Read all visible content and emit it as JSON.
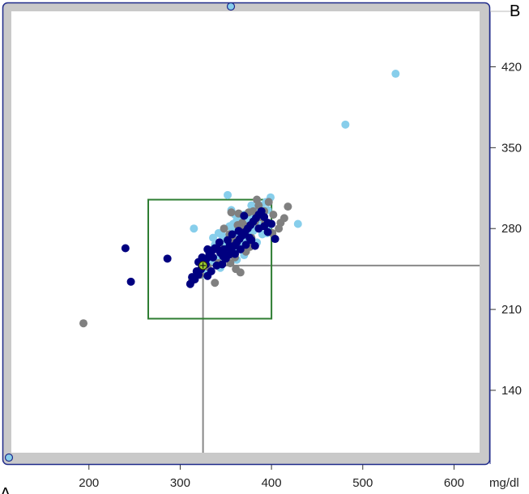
{
  "chart_data": {
    "type": "scatter",
    "x_unit_label": "mg/dl",
    "x_axis_title": "A",
    "y_axis_title": "B",
    "x_ticks": [
      200,
      300,
      400,
      500,
      600
    ],
    "y_ticks": [
      140,
      210,
      280,
      350,
      420
    ],
    "xlim": [
      115,
      628
    ],
    "ylim": [
      86,
      468
    ],
    "grid": false,
    "colors": {
      "frame": "#c9c9c9",
      "frame_border": "#1f2a8a",
      "handle": "#87ceeb",
      "box": "#2e7d32",
      "crosshair": "#888888",
      "marker": "#9acd32"
    },
    "marker": {
      "x": 325,
      "y": 248
    },
    "box": {
      "x": [
        265,
        400
      ],
      "y": [
        202,
        305
      ]
    },
    "series": [
      {
        "color": "#87ceeb",
        "points": [
          [
            536,
            414
          ],
          [
            481,
            370
          ],
          [
            429,
            284
          ],
          [
            399,
            307
          ],
          [
            392,
            296
          ],
          [
            387,
            292
          ],
          [
            384,
            286
          ],
          [
            380,
            290
          ],
          [
            376,
            288
          ],
          [
            372,
            283
          ],
          [
            368,
            285
          ],
          [
            364,
            281
          ],
          [
            360,
            279
          ],
          [
            356,
            276
          ],
          [
            352,
            272
          ],
          [
            348,
            270
          ],
          [
            344,
            268
          ],
          [
            340,
            264
          ],
          [
            336,
            262
          ],
          [
            332,
            259
          ],
          [
            338,
            266
          ],
          [
            346,
            274
          ],
          [
            354,
            282
          ],
          [
            358,
            284
          ],
          [
            362,
            287
          ],
          [
            366,
            290
          ],
          [
            370,
            292
          ],
          [
            378,
            294
          ],
          [
            382,
            298
          ],
          [
            388,
            300
          ],
          [
            394,
            303
          ],
          [
            396,
            296
          ],
          [
            390,
            290
          ],
          [
            385,
            283
          ],
          [
            380,
            278
          ],
          [
            376,
            274
          ],
          [
            372,
            270
          ],
          [
            368,
            266
          ],
          [
            362,
            262
          ],
          [
            356,
            258
          ],
          [
            350,
            262
          ],
          [
            345,
            258
          ],
          [
            340,
            254
          ],
          [
            334,
            252
          ],
          [
            330,
            248
          ],
          [
            327,
            244
          ],
          [
            324,
            240
          ],
          [
            352,
            309
          ],
          [
            356,
            296
          ],
          [
            360,
            292
          ],
          [
            375,
            280
          ],
          [
            398,
            283
          ],
          [
            395,
            276
          ],
          [
            390,
            275
          ],
          [
            384,
            268
          ],
          [
            362,
            253
          ],
          [
            348,
            255
          ],
          [
            315,
            280
          ],
          [
            370,
            257
          ],
          [
            344,
            246
          ],
          [
            350,
            266
          ],
          [
            378,
            300
          ],
          [
            342,
            276
          ],
          [
            336,
            272
          ],
          [
            365,
            275
          ],
          [
            386,
            288
          ]
        ]
      },
      {
        "color": "#808080",
        "points": [
          [
            194,
            198
          ],
          [
            313,
            235
          ],
          [
            338,
            233
          ],
          [
            361,
            245
          ],
          [
            366,
            242
          ],
          [
            355,
            250
          ],
          [
            372,
            260
          ],
          [
            414,
            289
          ],
          [
            418,
            299
          ],
          [
            397,
            303
          ],
          [
            392,
            295
          ],
          [
            380,
            295
          ],
          [
            375,
            294
          ],
          [
            364,
            293
          ],
          [
            356,
            294
          ],
          [
            346,
            262
          ],
          [
            351,
            258
          ],
          [
            386,
            300
          ],
          [
            401,
            276
          ],
          [
            408,
            280
          ],
          [
            378,
            272
          ],
          [
            360,
            255
          ],
          [
            342,
            250
          ],
          [
            330,
            247
          ],
          [
            322,
            240
          ],
          [
            368,
            285
          ],
          [
            393,
            285
          ],
          [
            384,
            305
          ],
          [
            348,
            280
          ],
          [
            358,
            270
          ],
          [
            372,
            282
          ],
          [
            388,
            290
          ],
          [
            402,
            292
          ],
          [
            410,
            285
          ],
          [
            343,
            268
          ],
          [
            376,
            264
          ],
          [
            367,
            278
          ],
          [
            354,
            275
          ],
          [
            363,
            283
          ],
          [
            382,
            286
          ]
        ]
      },
      {
        "color": "#000080",
        "points": [
          [
            240,
            263
          ],
          [
            246,
            234
          ],
          [
            286,
            254
          ],
          [
            311,
            232
          ],
          [
            316,
            236
          ],
          [
            320,
            240
          ],
          [
            323,
            245
          ],
          [
            326,
            250
          ],
          [
            329,
            254
          ],
          [
            332,
            258
          ],
          [
            335,
            261
          ],
          [
            338,
            263
          ],
          [
            341,
            262
          ],
          [
            344,
            259
          ],
          [
            347,
            256
          ],
          [
            350,
            254
          ],
          [
            353,
            257
          ],
          [
            356,
            261
          ],
          [
            359,
            265
          ],
          [
            362,
            268
          ],
          [
            365,
            271
          ],
          [
            368,
            274
          ],
          [
            371,
            277
          ],
          [
            374,
            280
          ],
          [
            377,
            283
          ],
          [
            380,
            286
          ],
          [
            383,
            289
          ],
          [
            386,
            292
          ],
          [
            389,
            295
          ],
          [
            392,
            282
          ],
          [
            396,
            277
          ],
          [
            400,
            284
          ],
          [
            404,
            271
          ],
          [
            392,
            290
          ],
          [
            386,
            280
          ],
          [
            372,
            266
          ],
          [
            366,
            262
          ],
          [
            360,
            258
          ],
          [
            354,
            265
          ],
          [
            348,
            262
          ],
          [
            343,
            268
          ],
          [
            330,
            262
          ],
          [
            328,
            249
          ],
          [
            318,
            243
          ],
          [
            313,
            238
          ],
          [
            324,
            255
          ],
          [
            336,
            255
          ],
          [
            352,
            270
          ],
          [
            364,
            278
          ],
          [
            378,
            270
          ],
          [
            382,
            265
          ],
          [
            370,
            291
          ],
          [
            357,
            275
          ],
          [
            340,
            248
          ],
          [
            334,
            243
          ],
          [
            346,
            249
          ],
          [
            320,
            251
          ],
          [
            330,
            239
          ],
          [
            376,
            272
          ],
          [
            396,
            285
          ]
        ]
      }
    ]
  }
}
